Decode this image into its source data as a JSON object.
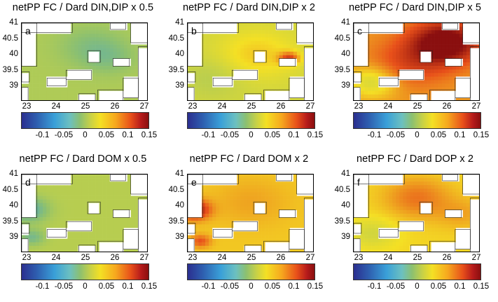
{
  "chart_data": [
    {
      "type": "heatmap",
      "panel_letter": "a",
      "title": "netPP FC / Dard DIN,DIP x 0.5",
      "x_ticks": [
        "23",
        "24",
        "25",
        "26",
        "27"
      ],
      "y_ticks": [
        "41",
        "40.5",
        "40",
        "39.5",
        "39"
      ],
      "colorbar_ticks": [
        "-0.1",
        "-0.05",
        "0",
        "0.05",
        "0.1",
        "0.15"
      ],
      "colorbar_range": [
        -0.15,
        0.15
      ],
      "color_scale": [
        "#2b2f8f",
        "#3aa0d8",
        "#8cc070",
        "#f4e024",
        "#e8501a",
        "#8a0f0f"
      ],
      "field": {
        "base": -0.01,
        "blobs": [
          {
            "cx": 0.55,
            "cy": 0.3,
            "a": -0.025,
            "r": 0.25
          },
          {
            "cx": 0.7,
            "cy": 0.45,
            "a": -0.02,
            "r": 0.2
          }
        ]
      }
    },
    {
      "type": "heatmap",
      "panel_letter": "b",
      "title": "netPP FC / Dard DIN,DIP x 2",
      "x_ticks": [
        "23",
        "24",
        "25",
        "26",
        "27"
      ],
      "y_ticks": [
        "41",
        "40.5",
        "40",
        "39.5",
        "39"
      ],
      "colorbar_ticks": [
        "-0.1",
        "-0.05",
        "0",
        "0.05",
        "0.1",
        "0.15"
      ],
      "colorbar_range": [
        -0.15,
        0.15
      ],
      "color_scale": [
        "#2b2f8f",
        "#3aa0d8",
        "#8cc070",
        "#f4e024",
        "#e8501a",
        "#8a0f0f"
      ],
      "field": {
        "base": 0.01,
        "blobs": [
          {
            "cx": 0.55,
            "cy": 0.4,
            "a": 0.03,
            "r": 0.3
          },
          {
            "cx": 0.8,
            "cy": 0.45,
            "a": 0.08,
            "r": 0.08
          },
          {
            "cx": 0.2,
            "cy": 0.7,
            "a": -0.015,
            "r": 0.25
          }
        ]
      }
    },
    {
      "type": "heatmap",
      "panel_letter": "c",
      "title": "netPP FC / Dard DIN,DIP x 5",
      "x_ticks": [
        "23",
        "24",
        "25",
        "26",
        "27"
      ],
      "y_ticks": [
        "41",
        "40.5",
        "40",
        "39.5",
        "39"
      ],
      "colorbar_ticks": [
        "-0.1",
        "-0.05",
        "0",
        "0.05",
        "0.1",
        "0.15"
      ],
      "colorbar_range": [
        -0.15,
        0.15
      ],
      "color_scale": [
        "#2b2f8f",
        "#3aa0d8",
        "#8cc070",
        "#f4e024",
        "#e8501a",
        "#8a0f0f"
      ],
      "field": {
        "base": 0.06,
        "blobs": [
          {
            "cx": 0.72,
            "cy": 0.25,
            "a": 0.12,
            "r": 0.25
          },
          {
            "cx": 0.45,
            "cy": 0.5,
            "a": 0.04,
            "r": 0.3
          },
          {
            "cx": 0.15,
            "cy": 0.75,
            "a": -0.05,
            "r": 0.2
          }
        ]
      }
    },
    {
      "type": "heatmap",
      "panel_letter": "d",
      "title": "netPP FC / Dard DOM x 0.5",
      "x_ticks": [
        "23",
        "24",
        "25",
        "26",
        "27"
      ],
      "y_ticks": [
        "41",
        "40.5",
        "40",
        "39.5",
        "39"
      ],
      "colorbar_ticks": [
        "-0.1",
        "-0.05",
        "0",
        "0.05",
        "0.1",
        "0.15"
      ],
      "colorbar_range": [
        -0.15,
        0.15
      ],
      "color_scale": [
        "#2b2f8f",
        "#3aa0d8",
        "#8cc070",
        "#f4e024",
        "#e8501a",
        "#8a0f0f"
      ],
      "field": {
        "base": -0.005,
        "blobs": [
          {
            "cx": 0.05,
            "cy": 0.45,
            "a": -0.06,
            "r": 0.15
          },
          {
            "cx": 0.08,
            "cy": 0.8,
            "a": -0.04,
            "r": 0.1
          }
        ]
      }
    },
    {
      "type": "heatmap",
      "panel_letter": "e",
      "title": "netPP FC / Dard DOM x 2",
      "x_ticks": [
        "23",
        "24",
        "25",
        "26",
        "27"
      ],
      "y_ticks": [
        "41",
        "40.5",
        "40",
        "39.5",
        "39"
      ],
      "colorbar_ticks": [
        "-0.1",
        "-0.05",
        "0",
        "0.05",
        "0.1",
        "0.15"
      ],
      "colorbar_range": [
        -0.15,
        0.15
      ],
      "color_scale": [
        "#2b2f8f",
        "#3aa0d8",
        "#8cc070",
        "#f4e024",
        "#e8501a",
        "#8a0f0f"
      ],
      "field": {
        "base": 0.04,
        "blobs": [
          {
            "cx": 0.05,
            "cy": 0.45,
            "a": 0.1,
            "r": 0.12
          },
          {
            "cx": 0.5,
            "cy": 0.35,
            "a": 0.015,
            "r": 0.3
          },
          {
            "cx": 0.1,
            "cy": 0.85,
            "a": 0.05,
            "r": 0.08
          }
        ]
      }
    },
    {
      "type": "heatmap",
      "panel_letter": "f",
      "title": "netPP FC / Dard DOP x 2",
      "x_ticks": [
        "23",
        "24",
        "25",
        "26",
        "27"
      ],
      "y_ticks": [
        "41",
        "40.5",
        "40",
        "39.5",
        "39"
      ],
      "colorbar_ticks": [
        "-0.1",
        "-0.05",
        "0",
        "0.05",
        "0.1",
        "0.15"
      ],
      "colorbar_range": [
        -0.15,
        0.15
      ],
      "color_scale": [
        "#2b2f8f",
        "#3aa0d8",
        "#8cc070",
        "#f4e024",
        "#e8501a",
        "#8a0f0f"
      ],
      "field": {
        "base": 0.035,
        "blobs": [
          {
            "cx": 0.5,
            "cy": 0.3,
            "a": 0.04,
            "r": 0.25
          },
          {
            "cx": 0.15,
            "cy": 0.75,
            "a": -0.025,
            "r": 0.2
          },
          {
            "cx": 0.85,
            "cy": 0.5,
            "a": 0.02,
            "r": 0.2
          }
        ]
      }
    }
  ]
}
